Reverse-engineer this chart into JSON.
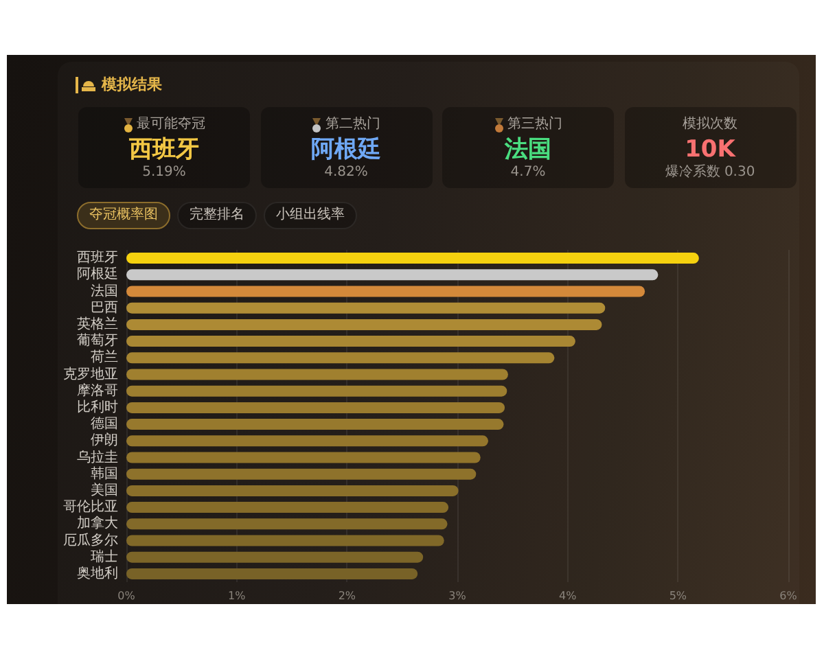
{
  "chart_data": [
    {
      "type": "other",
      "title": "模拟结果"
    },
    {
      "type": "other",
      "title": "最可能夺冠",
      "subtitle": "西班牙",
      "annotations": [
        "5.19%"
      ],
      "color": "#f2c744"
    },
    {
      "type": "other",
      "title": "第二热门",
      "subtitle": "阿根廷",
      "annotations": [
        "4.82%"
      ],
      "color": "#6fa8f5"
    },
    {
      "type": "other",
      "title": "第三热门",
      "subtitle": "法国",
      "annotations": [
        "4.7%"
      ],
      "color": "#4ade80"
    },
    {
      "type": "other",
      "title": "模拟次数",
      "subtitle": "10K",
      "annotations": [
        "爆冷系数 0.30"
      ],
      "color": "#f87171"
    },
    {
      "type": "bar",
      "orientation": "horizontal",
      "annotations": [
        "夺冠概率图",
        "完整排名",
        "小组出线率"
      ],
      "categories": [
        "西班牙",
        "阿根廷",
        "法国",
        "巴西",
        "英格兰",
        "葡萄牙",
        "荷兰",
        "克罗地亚",
        "摩洛哥",
        "比利时",
        "德国",
        "伊朗",
        "乌拉圭",
        "韩国",
        "美国",
        "哥伦比亚",
        "加拿大",
        "厄瓜多尔",
        "瑞士",
        "奥地利"
      ],
      "values": [
        5.19,
        4.82,
        4.7,
        4.34,
        4.31,
        4.07,
        3.88,
        3.46,
        3.45,
        3.43,
        3.42,
        3.28,
        3.21,
        3.17,
        3.01,
        2.92,
        2.91,
        2.88,
        2.69,
        2.64
      ],
      "colors": [
        "#f5d10f",
        "#c9c9c9",
        "#d4893a",
        "#b08d36",
        "#ad8a34",
        "#a98733",
        "#a58431",
        "#a0802f",
        "#9d7e2f",
        "#9a7b2e",
        "#97792d",
        "#94762c",
        "#91742b",
        "#8e722b",
        "#8a6f2a",
        "#866c29",
        "#836a29",
        "#806828",
        "#7c6528",
        "#786227"
      ],
      "xlim": [
        0,
        6
      ],
      "xticks": [
        {
          "value": 0,
          "label": "0%"
        },
        {
          "value": 1,
          "label": "1%"
        },
        {
          "value": 2,
          "label": "2%"
        },
        {
          "value": 3,
          "label": "3%"
        },
        {
          "value": 4,
          "label": "4%"
        },
        {
          "value": 5,
          "label": "5%"
        },
        {
          "value": 6,
          "label": "6%"
        }
      ],
      "grid": "x"
    }
  ]
}
